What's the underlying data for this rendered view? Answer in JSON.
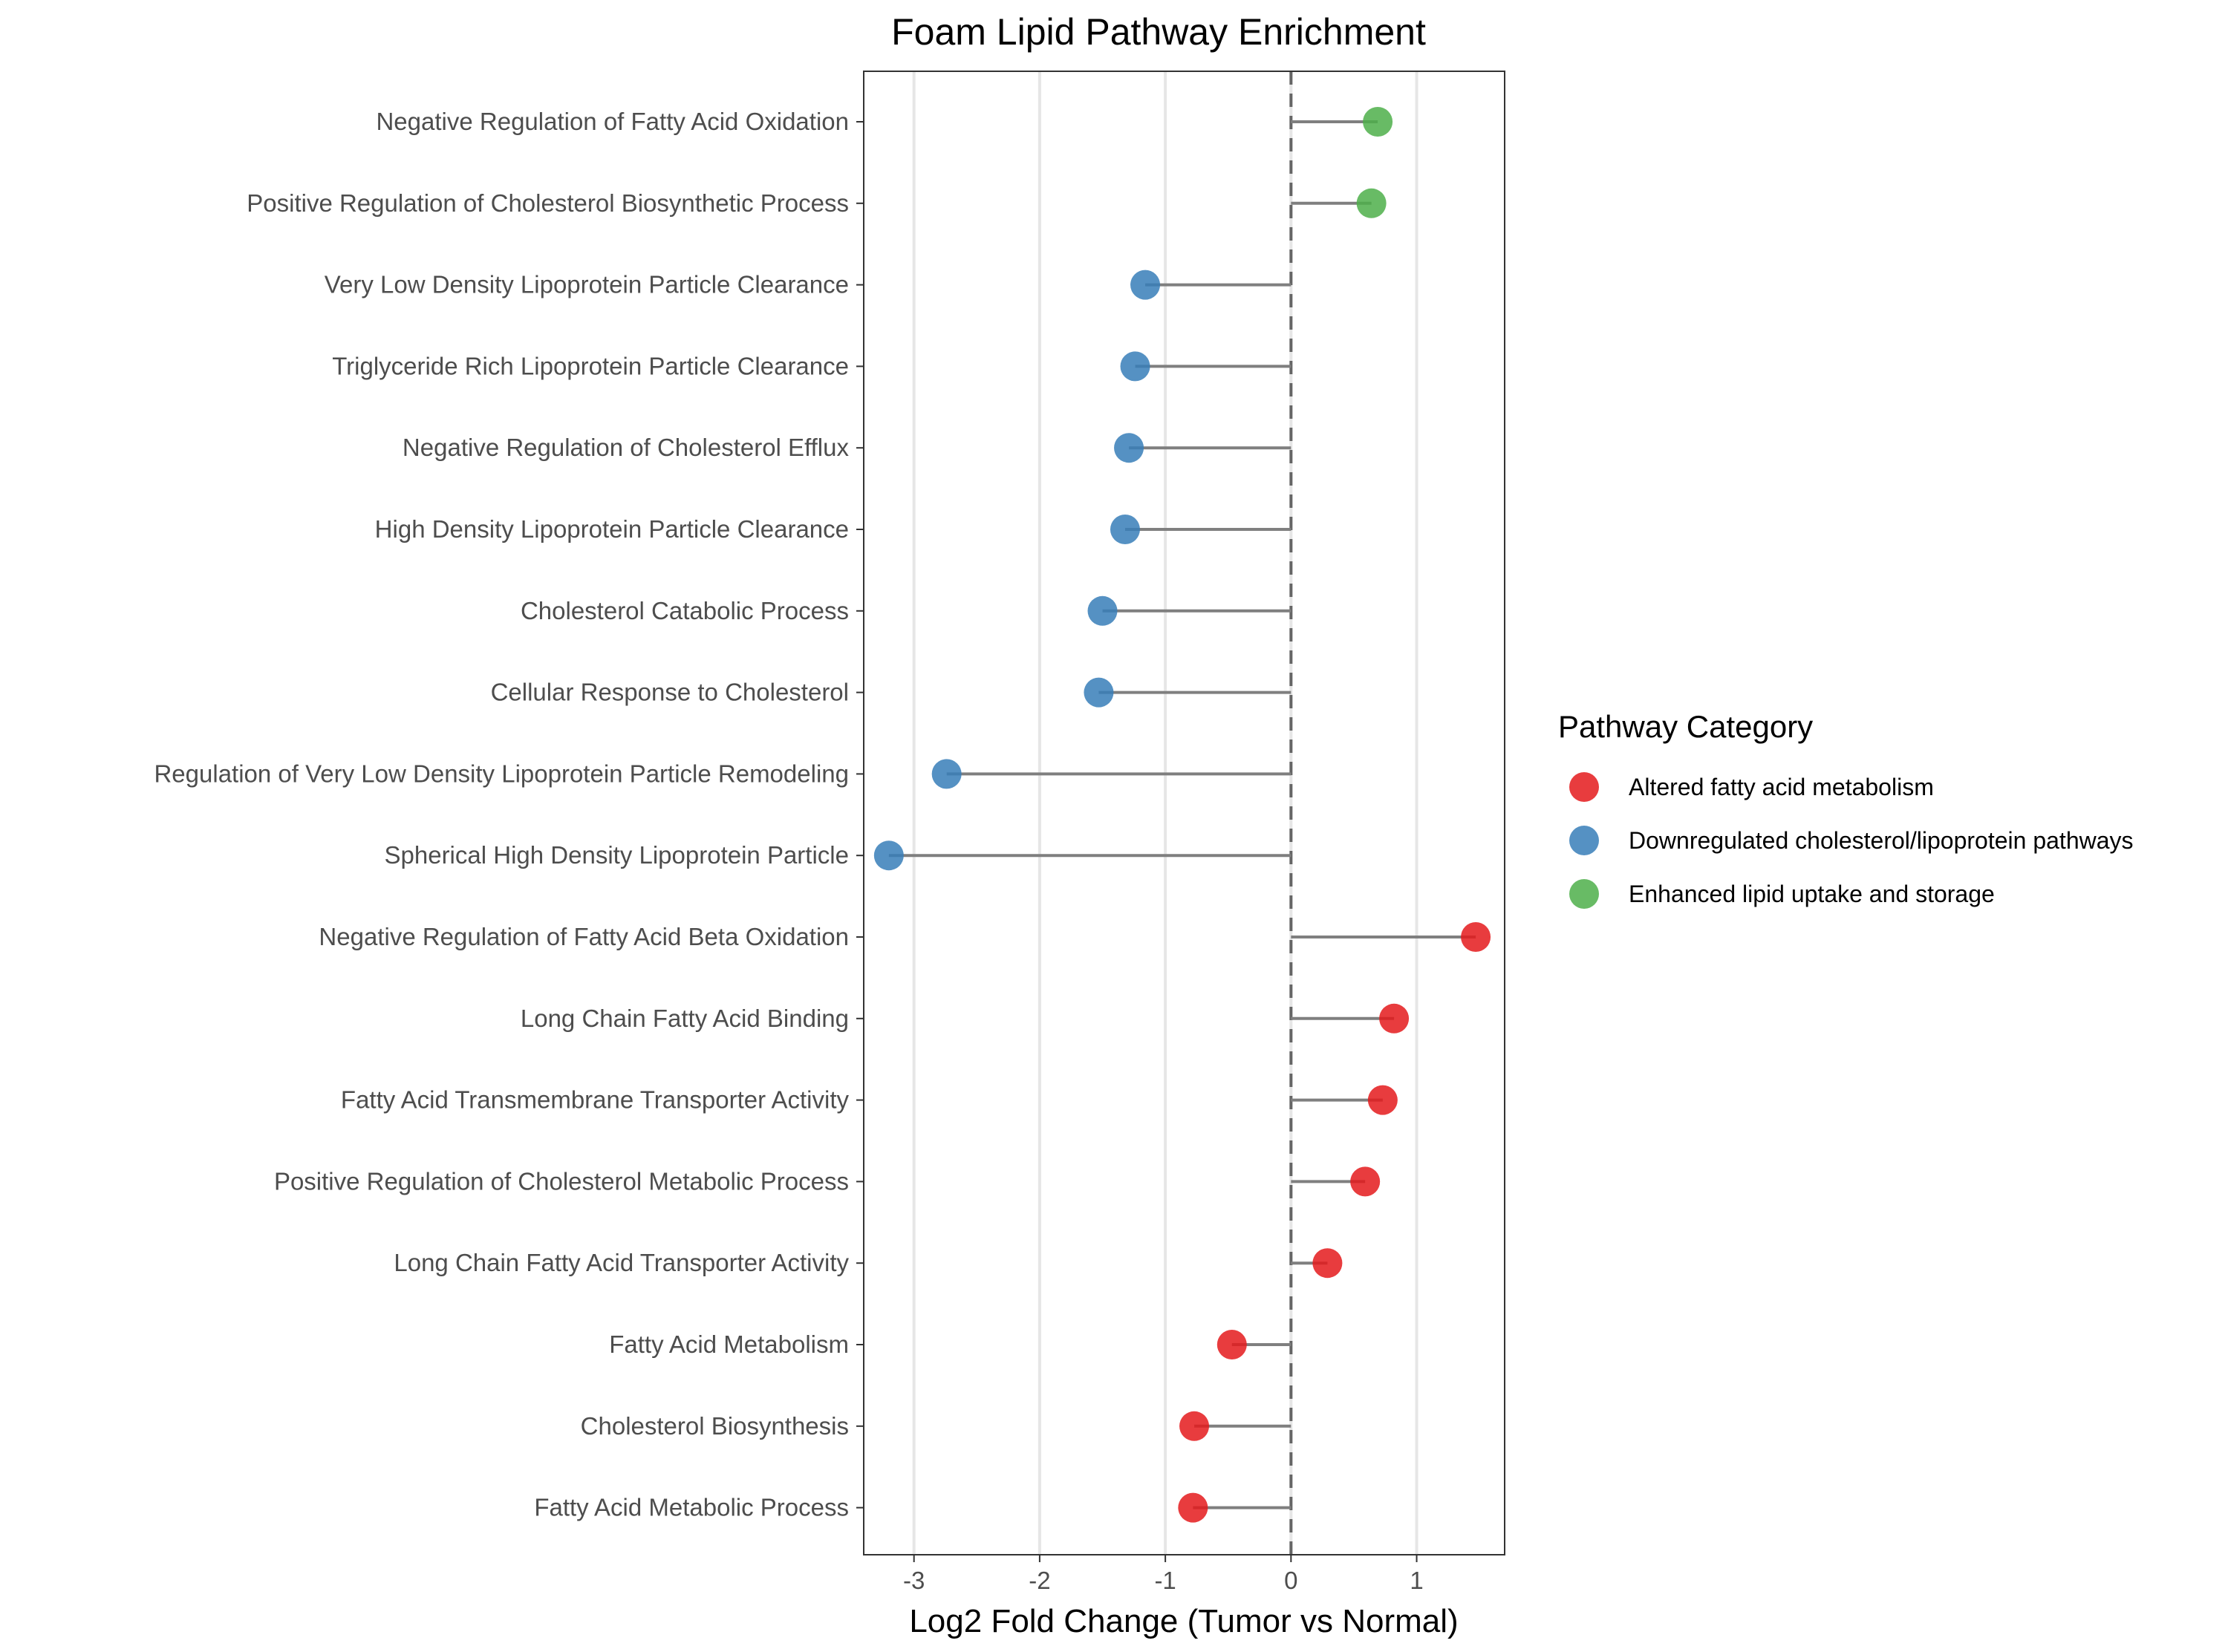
{
  "chart_data": {
    "type": "lollipop",
    "title": "Foam Lipid Pathway Enrichment",
    "xlabel": "Log2 Fold Change (Tumor vs Normal)",
    "ylabel": "",
    "xlim": [
      -3.4,
      1.7
    ],
    "x_ticks": [
      -3,
      -2,
      -1,
      0,
      1
    ],
    "x_tick_labels": [
      "-3",
      "-2",
      "-1",
      "0",
      "1"
    ],
    "reference_line": 0,
    "grid": "vertical major gridlines",
    "legend": {
      "title": "Pathway Category",
      "position": "right",
      "entries": [
        {
          "name": "Altered fatty acid metabolism",
          "color": "#e41a1c"
        },
        {
          "name": "Downregulated cholesterol/lipoprotein pathways",
          "color": "#377eb8"
        },
        {
          "name": "Enhanced lipid uptake and storage",
          "color": "#4daf4a"
        }
      ]
    },
    "points": [
      {
        "label": "Negative Regulation of Fatty Acid Oxidation",
        "value": 0.69,
        "category": "Enhanced lipid uptake and storage"
      },
      {
        "label": "Positive Regulation of Cholesterol Biosynthetic Process",
        "value": 0.64,
        "category": "Enhanced lipid uptake and storage"
      },
      {
        "label": "Very Low Density Lipoprotein Particle Clearance",
        "value": -1.16,
        "category": "Downregulated cholesterol/lipoprotein pathways"
      },
      {
        "label": "Triglyceride Rich Lipoprotein Particle Clearance",
        "value": -1.24,
        "category": "Downregulated cholesterol/lipoprotein pathways"
      },
      {
        "label": "Negative Regulation of Cholesterol Efflux",
        "value": -1.29,
        "category": "Downregulated cholesterol/lipoprotein pathways"
      },
      {
        "label": "High Density Lipoprotein Particle Clearance",
        "value": -1.32,
        "category": "Downregulated cholesterol/lipoprotein pathways"
      },
      {
        "label": "Cholesterol Catabolic Process",
        "value": -1.5,
        "category": "Downregulated cholesterol/lipoprotein pathways"
      },
      {
        "label": "Cellular Response to Cholesterol",
        "value": -1.53,
        "category": "Downregulated cholesterol/lipoprotein pathways"
      },
      {
        "label": "Regulation of Very Low Density Lipoprotein Particle Remodeling",
        "value": -2.74,
        "category": "Downregulated cholesterol/lipoprotein pathways"
      },
      {
        "label": "Spherical High Density Lipoprotein Particle",
        "value": -3.2,
        "category": "Downregulated cholesterol/lipoprotein pathways"
      },
      {
        "label": "Negative Regulation of Fatty Acid Beta Oxidation",
        "value": 1.47,
        "category": "Altered fatty acid metabolism"
      },
      {
        "label": "Long Chain Fatty Acid Binding",
        "value": 0.82,
        "category": "Altered fatty acid metabolism"
      },
      {
        "label": "Fatty Acid Transmembrane Transporter Activity",
        "value": 0.73,
        "category": "Altered fatty acid metabolism"
      },
      {
        "label": "Positive Regulation of Cholesterol Metabolic Process",
        "value": 0.59,
        "category": "Altered fatty acid metabolism"
      },
      {
        "label": "Long Chain Fatty Acid Transporter Activity",
        "value": 0.29,
        "category": "Altered fatty acid metabolism"
      },
      {
        "label": "Fatty Acid Metabolism",
        "value": -0.47,
        "category": "Altered fatty acid metabolism"
      },
      {
        "label": "Cholesterol Biosynthesis",
        "value": -0.77,
        "category": "Altered fatty acid metabolism"
      },
      {
        "label": "Fatty Acid Metabolic Process",
        "value": -0.78,
        "category": "Altered fatty acid metabolism"
      }
    ]
  }
}
